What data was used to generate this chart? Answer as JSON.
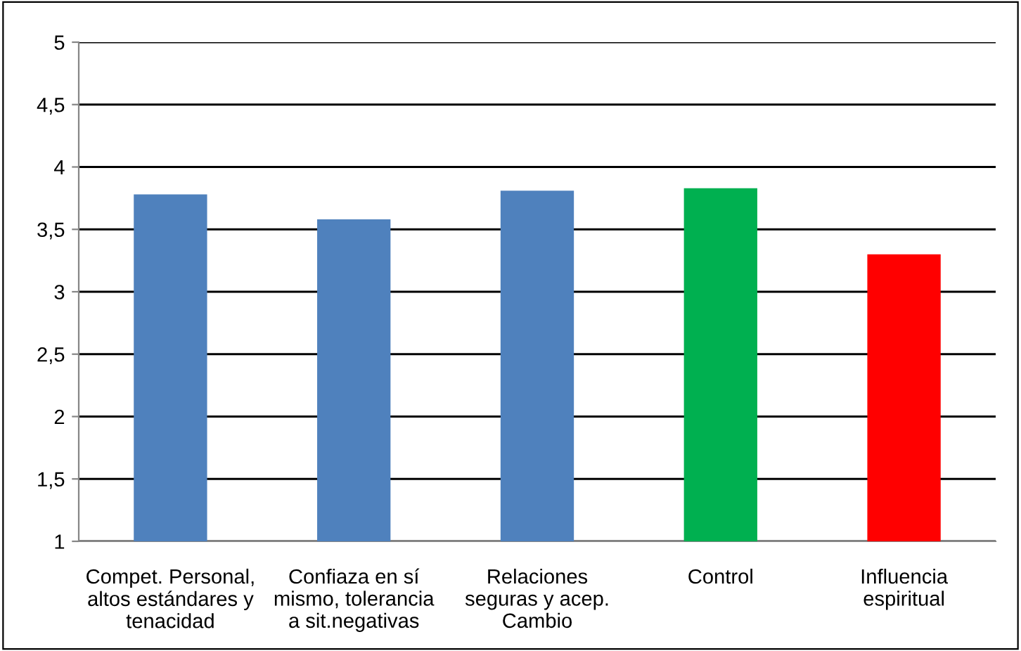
{
  "chart_data": {
    "type": "bar",
    "categories": [
      "Compet. Personal,\naltos estándares y\ntenacidad",
      "Confiaza en sí\nmismo, tolerancia\na sit.negativas",
      "Relaciones\nseguras y acep.\nCambio",
      "Control",
      "Influencia\nespiritual"
    ],
    "values": [
      3.78,
      3.58,
      3.81,
      3.83,
      3.3
    ],
    "colors": [
      "#4f81bd",
      "#4f81bd",
      "#4f81bd",
      "#00b050",
      "#ff0000"
    ],
    "ylim": [
      1,
      5
    ],
    "yticks": [
      1,
      {
        "value": 1.5,
        "label": "1,5"
      },
      2,
      {
        "value": 2.5,
        "label": "2,5"
      },
      3,
      {
        "value": 3.5,
        "label": "3,5"
      },
      4,
      {
        "value": 4.5,
        "label": "4,5"
      },
      5
    ],
    "grid": "y",
    "legend": false
  }
}
